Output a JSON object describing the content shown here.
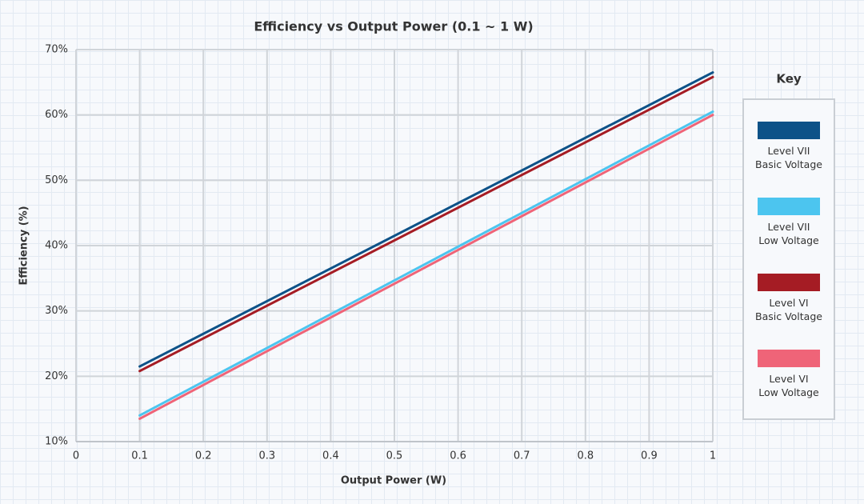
{
  "chart_data": {
    "type": "line",
    "title": "Efficiency vs Output Power (0.1 ~ 1 W)",
    "x_label": "Output Power (W)",
    "y_label": "Efficiency (%)",
    "legend_title": "Key",
    "legend_position": "right",
    "grid": true,
    "x": [
      0.1,
      1
    ],
    "series": [
      {
        "name": "Level VII\nBasic Voltage",
        "color": "#0d5288",
        "values": [
          21.5,
          66.5
        ]
      },
      {
        "name": "Level VII\nLow Voltage",
        "color": "#4cc5ef",
        "values": [
          14,
          60.5
        ]
      },
      {
        "name": "Level VI\nBasic Voltage",
        "color": "#a51c24",
        "values": [
          20.8,
          65.8
        ]
      },
      {
        "name": "Level VI\nLow Voltage",
        "color": "#ef6478",
        "values": [
          13.5,
          60
        ]
      }
    ],
    "xlim": [
      0,
      1
    ],
    "xticks": [
      0,
      0.1,
      0.2,
      0.3,
      0.4,
      0.5,
      0.6,
      0.7,
      0.8,
      0.9,
      1
    ],
    "ylim": [
      10,
      70
    ],
    "yticks": [
      {
        "value": 10,
        "label": "10%"
      },
      {
        "value": 20,
        "label": "20%"
      },
      {
        "value": 30,
        "label": "30%"
      },
      {
        "value": 40,
        "label": "40%"
      },
      {
        "value": 50,
        "label": "50%"
      },
      {
        "value": 60,
        "label": "60%"
      },
      {
        "value": 70,
        "label": "70%"
      }
    ]
  }
}
